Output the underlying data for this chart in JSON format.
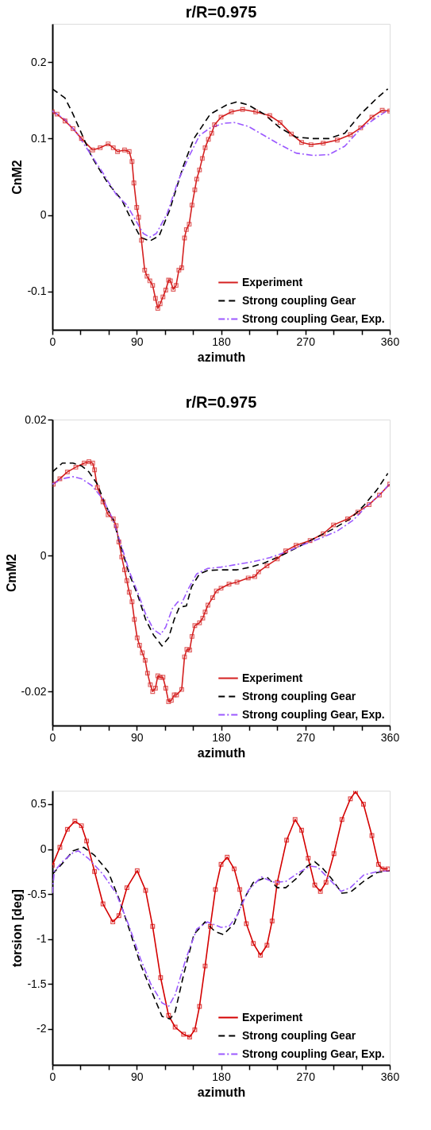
{
  "chart_data": [
    {
      "type": "line",
      "title": "r/R=0.975",
      "xlabel": "azimuth",
      "ylabel": "CnM2",
      "xlim": [
        0,
        360
      ],
      "ylim": [
        -0.15,
        0.25
      ],
      "xticks": [
        0,
        {
          "value": 30,
          "label": null
        },
        {
          "value": 60,
          "label": null
        },
        90,
        {
          "value": 120,
          "label": null
        },
        {
          "value": 150,
          "label": null
        },
        180,
        {
          "value": 210,
          "label": null
        },
        {
          "value": 240,
          "label": null
        },
        270,
        {
          "value": 300,
          "label": null
        },
        {
          "value": 330,
          "label": null
        },
        360
      ],
      "yticks": [
        -0.1,
        0,
        0.1,
        0.2
      ],
      "grid": false,
      "legend": "bottom right",
      "series": [
        {
          "name": "Experiment",
          "color": "#d42020",
          "marker": "square",
          "line_style": "solid",
          "x": [
            0,
            5,
            13.5,
            22,
            31,
            43,
            51,
            59.5,
            65,
            69.5,
            77,
            82,
            85,
            87,
            90,
            92,
            95,
            98.5,
            101,
            104,
            107,
            110,
            112.5,
            115,
            118,
            121,
            124,
            126,
            129,
            132,
            135,
            138,
            141,
            143,
            146,
            149,
            152,
            154,
            157,
            160,
            163,
            166.5,
            170,
            173,
            180,
            191,
            203,
            217,
            232,
            243,
            255,
            266,
            276,
            289,
            304,
            318,
            329,
            341,
            352,
            360
          ],
          "values": [
            0.135,
            0.132,
            0.123,
            0.113,
            0.1,
            0.085,
            0.088,
            0.093,
            0.088,
            0.083,
            0.085,
            0.083,
            0.07,
            0.042,
            0.01,
            -0.003,
            -0.033,
            -0.072,
            -0.08,
            -0.086,
            -0.092,
            -0.109,
            -0.122,
            -0.116,
            -0.107,
            -0.098,
            -0.085,
            -0.086,
            -0.097,
            -0.092,
            -0.072,
            -0.069,
            -0.03,
            -0.019,
            -0.012,
            0.013,
            0.033,
            0.047,
            0.059,
            0.074,
            0.088,
            0.099,
            0.107,
            0.118,
            0.128,
            0.135,
            0.138,
            0.135,
            0.13,
            0.121,
            0.106,
            0.095,
            0.092,
            0.094,
            0.098,
            0.105,
            0.114,
            0.128,
            0.137,
            0.136
          ]
        },
        {
          "name": "Strong coupling Gear",
          "color": "#000000",
          "marker": "none",
          "line_style": "dashed",
          "x": [
            0,
            13.5,
            22,
            31,
            42,
            59.5,
            74,
            85,
            94,
            104,
            114,
            125,
            140,
            151,
            168.5,
            186,
            197,
            209,
            226,
            243,
            260,
            278,
            295,
            312,
            329,
            346.5,
            358
          ],
          "values": [
            0.165,
            0.153,
            0.132,
            0.107,
            0.076,
            0.041,
            0.02,
            -0.008,
            -0.029,
            -0.034,
            -0.027,
            0.006,
            0.065,
            0.1,
            0.132,
            0.144,
            0.148,
            0.144,
            0.132,
            0.114,
            0.102,
            0.1,
            0.1,
            0.107,
            0.132,
            0.153,
            0.165
          ]
        },
        {
          "name": "Strong coupling Gear, Exp.",
          "color": "#9b59ff",
          "marker": "none",
          "line_style": "dashdot",
          "x": [
            0,
            13.5,
            25,
            39,
            54,
            68,
            79.5,
            88,
            97,
            104,
            111,
            122.5,
            134,
            145.5,
            157,
            168.5,
            183,
            194,
            209,
            226,
            243,
            260,
            278,
            295,
            312,
            329,
            346.5,
            358
          ],
          "values": [
            0.136,
            0.125,
            0.109,
            0.083,
            0.055,
            0.027,
            0.013,
            -0.005,
            -0.024,
            -0.029,
            -0.024,
            0.002,
            0.044,
            0.076,
            0.104,
            0.114,
            0.12,
            0.121,
            0.116,
            0.104,
            0.092,
            0.081,
            0.078,
            0.079,
            0.09,
            0.113,
            0.128,
            0.137
          ]
        }
      ]
    },
    {
      "type": "line",
      "title": "r/R=0.975",
      "xlabel": "azimuth",
      "ylabel": "CmM2",
      "xlim": [
        0,
        360
      ],
      "ylim": [
        -0.025,
        0.02
      ],
      "xticks": [
        0,
        {
          "value": 30,
          "label": null
        },
        {
          "value": 60,
          "label": null
        },
        90,
        {
          "value": 120,
          "label": null
        },
        {
          "value": 150,
          "label": null
        },
        180,
        {
          "value": 210,
          "label": null
        },
        {
          "value": 240,
          "label": null
        },
        270,
        {
          "value": 300,
          "label": null
        },
        {
          "value": 330,
          "label": null
        },
        360
      ],
      "yticks": [
        -0.02,
        0,
        0.02
      ],
      "grid": false,
      "legend": "bottom right",
      "series": [
        {
          "name": "Experiment",
          "color": "#d42020",
          "marker": "square",
          "line_style": "solid",
          "x": [
            1,
            8,
            16,
            25,
            34,
            39,
            43,
            45,
            48,
            54,
            59.5,
            65,
            68,
            71,
            74,
            77,
            79.5,
            82,
            85,
            87.5,
            90.5,
            93,
            96,
            99,
            101.5,
            104.5,
            107,
            110,
            112.5,
            115,
            118,
            121,
            124,
            127,
            130,
            132.5,
            138,
            141,
            143.5,
            146.5,
            149,
            152,
            157,
            160.5,
            163,
            166,
            171,
            175,
            180,
            188.5,
            197,
            209,
            216,
            220,
            229,
            240,
            249,
            260,
            275,
            289,
            300,
            315,
            326,
            338,
            349,
            360
          ],
          "values": [
            0.0105,
            0.0113,
            0.0123,
            0.013,
            0.0136,
            0.0138,
            0.0136,
            0.0126,
            0.01,
            0.0079,
            0.006,
            0.0054,
            0.0044,
            0.002,
            -0.0002,
            -0.0021,
            -0.0037,
            -0.0054,
            -0.0068,
            -0.0094,
            -0.0121,
            -0.0132,
            -0.0143,
            -0.0154,
            -0.0173,
            -0.019,
            -0.02,
            -0.0195,
            -0.0177,
            -0.0179,
            -0.0179,
            -0.0195,
            -0.0215,
            -0.0213,
            -0.0205,
            -0.0205,
            -0.0197,
            -0.0149,
            -0.0138,
            -0.0139,
            -0.0119,
            -0.0103,
            -0.0099,
            -0.0092,
            -0.0083,
            -0.0073,
            -0.0062,
            -0.0052,
            -0.0048,
            -0.0042,
            -0.0039,
            -0.0033,
            -0.0031,
            -0.0024,
            -0.0015,
            -0.0005,
            0.0007,
            0.0015,
            0.0022,
            0.0032,
            0.0045,
            0.0054,
            0.0064,
            0.0075,
            0.0089,
            0.0105
          ]
        },
        {
          "name": "Strong coupling Gear",
          "color": "#000000",
          "marker": "none",
          "line_style": "dashed",
          "x": [
            0,
            10.6,
            22,
            31,
            39,
            48,
            56.5,
            65,
            74,
            82,
            91,
            99.5,
            108,
            117,
            124,
            130,
            135.5,
            143,
            148.5,
            157,
            165.5,
            180,
            197,
            211.5,
            226,
            243,
            260,
            278,
            298,
            318,
            332,
            346.5,
            358
          ],
          "values": [
            0.0123,
            0.0136,
            0.0136,
            0.0132,
            0.0123,
            0.0105,
            0.0075,
            0.0052,
            0.0009,
            -0.0027,
            -0.0058,
            -0.0094,
            -0.0117,
            -0.0133,
            -0.0121,
            -0.0094,
            -0.0076,
            -0.0074,
            -0.0046,
            -0.0027,
            -0.0022,
            -0.0021,
            -0.0021,
            -0.0017,
            -0.0011,
            -0.0001,
            0.0011,
            0.0024,
            0.0038,
            0.0054,
            0.0073,
            0.0097,
            0.0121
          ]
        },
        {
          "name": "Strong coupling Gear, Exp.",
          "color": "#9b59ff",
          "marker": "none",
          "line_style": "dashdot",
          "x": [
            0,
            10.6,
            22,
            31,
            42,
            54,
            65,
            74,
            82,
            91,
            99.5,
            108,
            115.5,
            121,
            128,
            134,
            138,
            145.5,
            154,
            165.5,
            180,
            197,
            214.5,
            232,
            249,
            266,
            283.5,
            304,
            321,
            335,
            349,
            359.5
          ],
          "values": [
            0.0105,
            0.0113,
            0.0116,
            0.0113,
            0.0103,
            0.0083,
            0.0052,
            0.0013,
            -0.0023,
            -0.0054,
            -0.0086,
            -0.0109,
            -0.0116,
            -0.0105,
            -0.0078,
            -0.0068,
            -0.007,
            -0.0048,
            -0.0027,
            -0.0019,
            -0.0017,
            -0.0013,
            -0.0009,
            -0.0003,
            0.0005,
            0.0015,
            0.0024,
            0.0036,
            0.0052,
            0.0072,
            0.0089,
            0.0105
          ]
        }
      ]
    },
    {
      "type": "line",
      "xlabel": "azimuth",
      "ylabel": "torsion [deg]",
      "xlim": [
        0,
        360
      ],
      "ylim": [
        -2.4,
        0.65
      ],
      "xticks": [
        0,
        {
          "value": 30,
          "label": null
        },
        {
          "value": 60,
          "label": null
        },
        90,
        {
          "value": 120,
          "label": null
        },
        {
          "value": 150,
          "label": null
        },
        180,
        {
          "value": 210,
          "label": null
        },
        {
          "value": 240,
          "label": null
        },
        270,
        {
          "value": 300,
          "label": null
        },
        {
          "value": 330,
          "label": null
        },
        360
      ],
      "yticks": [
        -2,
        -1.5,
        -1,
        -0.5,
        0,
        0.5
      ],
      "grid": false,
      "legend": "bottom right",
      "series": [
        {
          "name": "Experiment",
          "color": "#d40000",
          "marker": "square",
          "line_style": "solid",
          "x": [
            0,
            8,
            16,
            24,
            31,
            36.5,
            45,
            54,
            64.5,
            71,
            79.5,
            90.5,
            99.5,
            107,
            115.5,
            124,
            131,
            140,
            146.5,
            152,
            157,
            163,
            168.5,
            174,
            180,
            186.5,
            194,
            200,
            207,
            214.5,
            222,
            229,
            234.5,
            240,
            250,
            259,
            266,
            273,
            280,
            286,
            292,
            300.5,
            309,
            318,
            323.5,
            332,
            341,
            348,
            352,
            358
          ],
          "values": [
            -0.18,
            0.02,
            0.22,
            0.31,
            0.26,
            0.09,
            -0.25,
            -0.61,
            -0.81,
            -0.74,
            -0.43,
            -0.24,
            -0.46,
            -0.86,
            -1.43,
            -1.85,
            -1.98,
            -2.06,
            -2.09,
            -2.01,
            -1.75,
            -1.3,
            -0.86,
            -0.45,
            -0.17,
            -0.09,
            -0.22,
            -0.45,
            -0.83,
            -1.05,
            -1.18,
            -1.07,
            -0.8,
            -0.37,
            0.1,
            0.33,
            0.21,
            -0.1,
            -0.4,
            -0.47,
            -0.37,
            -0.05,
            0.33,
            0.56,
            0.64,
            0.5,
            0.15,
            -0.17,
            -0.22,
            -0.22
          ]
        },
        {
          "name": "Strong coupling Gear",
          "color": "#000000",
          "marker": "none",
          "line_style": "dashed",
          "x": [
            0,
            10.6,
            22,
            33.5,
            45,
            59.5,
            71,
            82,
            94,
            105,
            117,
            125.5,
            131,
            140,
            151,
            163,
            174,
            182.5,
            194,
            203,
            214.5,
            229,
            240,
            249,
            260,
            272,
            280,
            289,
            298,
            309,
            318,
            332,
            346.5,
            360
          ],
          "values": [
            -0.28,
            -0.16,
            -0.02,
            0.02,
            -0.07,
            -0.25,
            -0.55,
            -0.89,
            -1.28,
            -1.56,
            -1.86,
            -1.89,
            -1.81,
            -1.4,
            -0.95,
            -0.81,
            -0.92,
            -0.95,
            -0.83,
            -0.58,
            -0.37,
            -0.31,
            -0.43,
            -0.43,
            -0.33,
            -0.19,
            -0.14,
            -0.22,
            -0.33,
            -0.49,
            -0.48,
            -0.36,
            -0.26,
            -0.24
          ]
        },
        {
          "name": "Strong coupling Gear, Exp.",
          "color": "#9b59ff",
          "marker": "none",
          "line_style": "dashdot",
          "x": [
            0,
            2,
            10.6,
            22,
            28,
            39,
            54,
            68,
            82,
            94,
            105,
            117,
            124,
            131,
            142.5,
            154,
            165.5,
            180,
            188.5,
            197,
            209,
            223,
            237,
            249,
            263,
            275,
            283,
            295,
            308,
            318,
            332,
            346.5,
            360
          ],
          "values": [
            -0.49,
            -0.25,
            -0.14,
            -0.04,
            -0.02,
            -0.11,
            -0.28,
            -0.49,
            -0.86,
            -1.22,
            -1.5,
            -1.71,
            -1.75,
            -1.62,
            -1.22,
            -0.89,
            -0.81,
            -0.87,
            -0.86,
            -0.74,
            -0.46,
            -0.31,
            -0.37,
            -0.36,
            -0.26,
            -0.19,
            -0.2,
            -0.33,
            -0.47,
            -0.43,
            -0.29,
            -0.25,
            -0.24
          ]
        }
      ]
    }
  ]
}
